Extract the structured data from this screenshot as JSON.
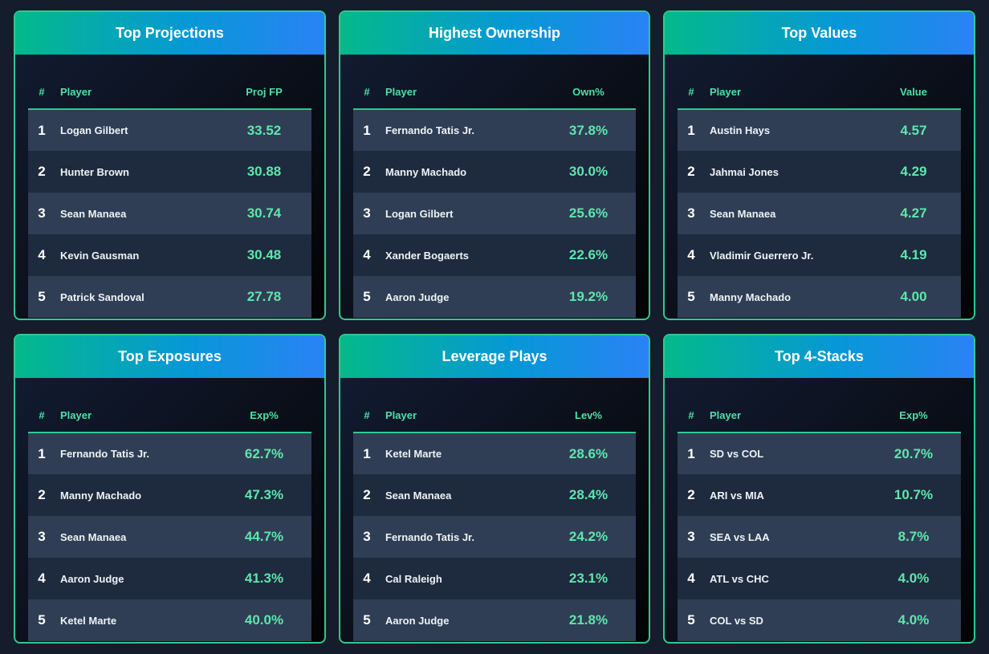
{
  "panels": [
    {
      "title": "Top Projections",
      "col_rank": "#",
      "col_player": "Player",
      "col_value": "Proj FP",
      "rows": [
        {
          "rank": "1",
          "player": "Logan Gilbert",
          "value": "33.52"
        },
        {
          "rank": "2",
          "player": "Hunter Brown",
          "value": "30.88"
        },
        {
          "rank": "3",
          "player": "Sean Manaea",
          "value": "30.74"
        },
        {
          "rank": "4",
          "player": "Kevin Gausman",
          "value": "30.48"
        },
        {
          "rank": "5",
          "player": "Patrick Sandoval",
          "value": "27.78"
        }
      ]
    },
    {
      "title": "Highest Ownership",
      "col_rank": "#",
      "col_player": "Player",
      "col_value": "Own%",
      "rows": [
        {
          "rank": "1",
          "player": "Fernando Tatis Jr.",
          "value": "37.8%"
        },
        {
          "rank": "2",
          "player": "Manny Machado",
          "value": "30.0%"
        },
        {
          "rank": "3",
          "player": "Logan Gilbert",
          "value": "25.6%"
        },
        {
          "rank": "4",
          "player": "Xander Bogaerts",
          "value": "22.6%"
        },
        {
          "rank": "5",
          "player": "Aaron Judge",
          "value": "19.2%"
        }
      ]
    },
    {
      "title": "Top Values",
      "col_rank": "#",
      "col_player": "Player",
      "col_value": "Value",
      "rows": [
        {
          "rank": "1",
          "player": "Austin Hays",
          "value": "4.57"
        },
        {
          "rank": "2",
          "player": "Jahmai Jones",
          "value": "4.29"
        },
        {
          "rank": "3",
          "player": "Sean Manaea",
          "value": "4.27"
        },
        {
          "rank": "4",
          "player": "Vladimir Guerrero Jr.",
          "value": "4.19"
        },
        {
          "rank": "5",
          "player": "Manny Machado",
          "value": "4.00"
        }
      ]
    },
    {
      "title": "Top Exposures",
      "col_rank": "#",
      "col_player": "Player",
      "col_value": "Exp%",
      "rows": [
        {
          "rank": "1",
          "player": "Fernando Tatis Jr.",
          "value": "62.7%"
        },
        {
          "rank": "2",
          "player": "Manny Machado",
          "value": "47.3%"
        },
        {
          "rank": "3",
          "player": "Sean Manaea",
          "value": "44.7%"
        },
        {
          "rank": "4",
          "player": "Aaron Judge",
          "value": "41.3%"
        },
        {
          "rank": "5",
          "player": "Ketel Marte",
          "value": "40.0%"
        }
      ]
    },
    {
      "title": "Leverage Plays",
      "col_rank": "#",
      "col_player": "Player",
      "col_value": "Lev%",
      "rows": [
        {
          "rank": "1",
          "player": "Ketel Marte",
          "value": "28.6%"
        },
        {
          "rank": "2",
          "player": "Sean Manaea",
          "value": "28.4%"
        },
        {
          "rank": "3",
          "player": "Fernando Tatis Jr.",
          "value": "24.2%"
        },
        {
          "rank": "4",
          "player": "Cal Raleigh",
          "value": "23.1%"
        },
        {
          "rank": "5",
          "player": "Aaron Judge",
          "value": "21.8%"
        }
      ]
    },
    {
      "title": "Top 4-Stacks",
      "col_rank": "#",
      "col_player": "Player",
      "col_value": "Exp%",
      "rows": [
        {
          "rank": "1",
          "player": "SD vs COL",
          "value": "20.7%"
        },
        {
          "rank": "2",
          "player": "ARI vs MIA",
          "value": "10.7%"
        },
        {
          "rank": "3",
          "player": "SEA vs LAA",
          "value": "8.7%"
        },
        {
          "rank": "4",
          "player": "ATL vs CHC",
          "value": "4.0%"
        },
        {
          "rank": "5",
          "player": "COL vs SD",
          "value": "4.0%"
        }
      ]
    }
  ],
  "colors": {
    "background": "#151c2b",
    "accent": "#2fc98f",
    "header_gradient_start": "#04b98a",
    "header_gradient_end": "#2a82f5",
    "value_text": "#5ee6ad",
    "row_light": "#2f3e54",
    "row_dark": "#1e2a3d"
  }
}
